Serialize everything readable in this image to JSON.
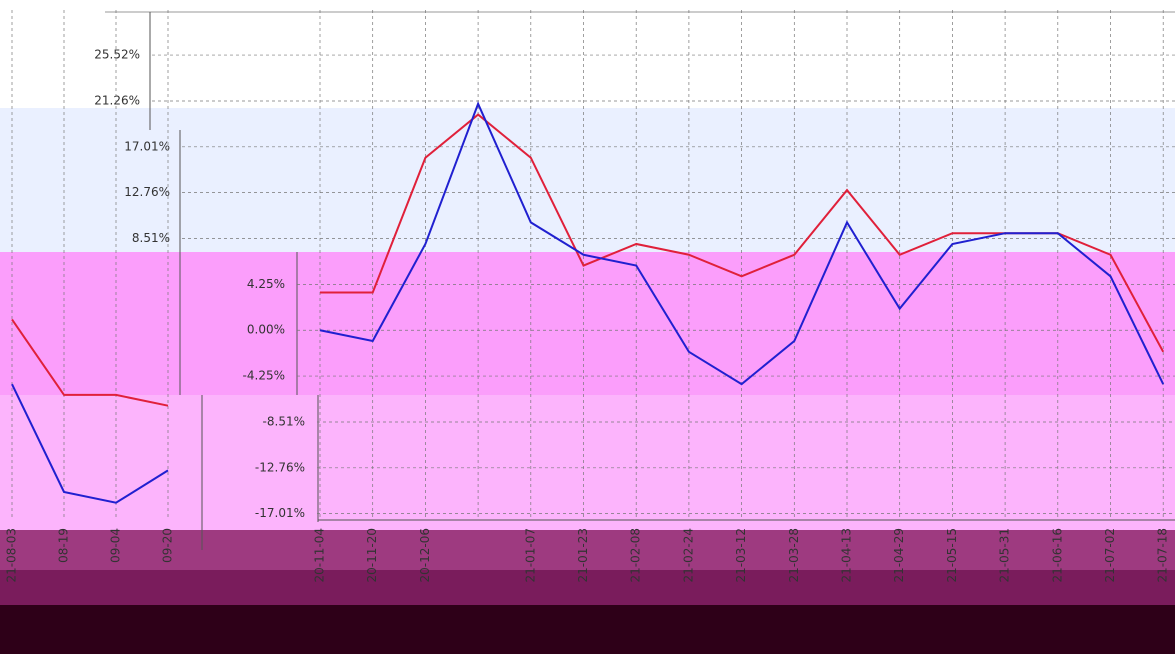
{
  "chart_data": [
    {
      "type": "line",
      "categories": [
        "20-11-04",
        "20-11-20",
        "20-12-06",
        null,
        "21-01-07",
        "21-01-23",
        "21-02-08",
        "21-02-24",
        "21-03-12",
        "21-03-28",
        "21-04-13",
        "21-04-29",
        "21-05-15",
        "21-05-31",
        "21-06-16",
        "21-07-02",
        "21-07-18"
      ],
      "series": [
        {
          "color": "#e0203a",
          "values": [
            3.5,
            3.5,
            16,
            20,
            16,
            6,
            8,
            7,
            5,
            7,
            13,
            7,
            9,
            9,
            9,
            7,
            -2
          ]
        },
        {
          "color": "#2020d0",
          "values": [
            0,
            -1,
            8,
            21,
            10,
            7,
            6,
            -2,
            -5,
            -1,
            10,
            2,
            8,
            9,
            9,
            5,
            -5
          ]
        }
      ],
      "ylim": [
        -17.6,
        29.7
      ],
      "yticks": [
        {
          "value": 25.52,
          "label": "25.52%"
        },
        {
          "value": 21.26,
          "label": "21.26%"
        },
        {
          "value": 17.01,
          "label": "17.01%"
        },
        {
          "value": 12.76,
          "label": "12.76%"
        },
        {
          "value": 8.51,
          "label": "8.51%"
        },
        {
          "value": 4.25,
          "label": "4.25%"
        },
        {
          "value": 0,
          "label": "0.00%"
        },
        {
          "value": -4.25,
          "label": "-4.25%"
        },
        {
          "value": -8.51,
          "label": "-8.51%"
        },
        {
          "value": -12.76,
          "label": "-12.76%"
        },
        {
          "value": -17.01,
          "label": "-17.01%"
        }
      ],
      "grid": true
    },
    {
      "type": "line",
      "categories": [
        "21-08-03",
        "08-19",
        "09-04",
        "09-20"
      ],
      "series": [
        {
          "color": "#e0203a",
          "values": [
            1,
            -6,
            -6,
            -7
          ]
        },
        {
          "color": "#2020d0",
          "values": [
            -5,
            -15,
            -16,
            -13
          ]
        }
      ],
      "ylim": [
        -17.6,
        29.7
      ],
      "grid": true
    }
  ]
}
